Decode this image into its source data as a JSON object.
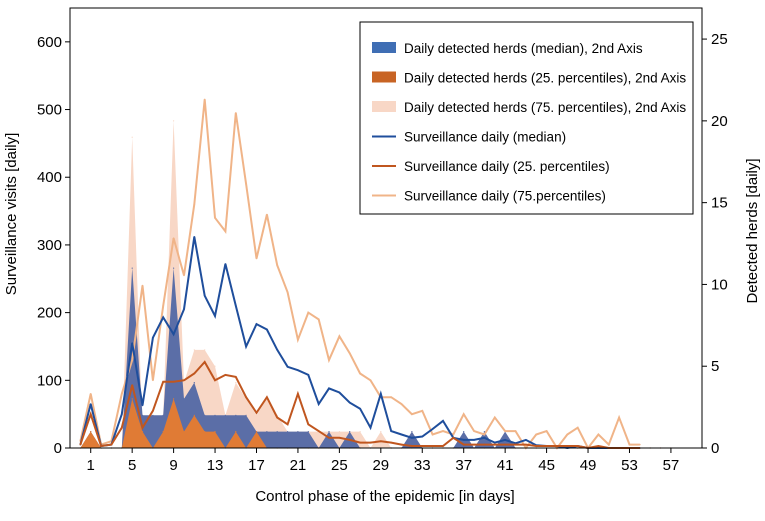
{
  "chart_data": {
    "type": "line",
    "xlabel": "Control phase of the epidemic [in days]",
    "ylabel_left": "Surveillance visits [daily]",
    "ylabel_right": "Detected herds [daily]",
    "x_ticks": [
      1,
      5,
      9,
      13,
      17,
      21,
      25,
      29,
      33,
      37,
      41,
      45,
      49,
      53,
      57
    ],
    "ylim_left": [
      0,
      650
    ],
    "yticks_left": [
      0,
      100,
      200,
      300,
      400,
      500,
      600
    ],
    "ylim_right": [
      0,
      26.9
    ],
    "yticks_right": [
      0,
      5,
      10,
      15,
      20,
      25
    ],
    "xlim": [
      -1,
      60
    ],
    "legend_position": "top-right",
    "colors": {
      "median": "#1f4e9c",
      "p25": "#c0561f",
      "p75": "#f0b488",
      "fill_median": "#5b6ea7",
      "fill_p25": "#e07b35",
      "fill_p75": "#f8d7c6"
    },
    "legend": [
      {
        "label": "Daily detected herds (median), 2nd Axis",
        "kind": "area",
        "series": "median"
      },
      {
        "label": "Daily detected herds (25. percentiles), 2nd Axis",
        "kind": "area",
        "series": "p25"
      },
      {
        "label": "Daily detected herds (75. percentiles), 2nd Axis",
        "kind": "area",
        "series": "p75"
      },
      {
        "label": "Surveillance daily (median)",
        "kind": "line",
        "series": "median"
      },
      {
        "label": "Surveillance daily (25. percentiles)",
        "kind": "line",
        "series": "p25"
      },
      {
        "label": "Surveillance daily (75.percentiles)",
        "kind": "line",
        "series": "p75"
      }
    ],
    "series": [
      {
        "name": "Daily detected herds (75. percentiles), 2nd Axis",
        "axis": "right",
        "kind": "area",
        "key": "p75",
        "x": [
          0,
          1,
          2,
          3,
          4,
          5,
          6,
          7,
          8,
          9,
          10,
          11,
          12,
          13,
          14,
          15,
          16,
          17,
          18,
          19,
          20,
          21,
          22,
          23,
          24,
          25,
          26,
          27,
          28,
          29,
          30,
          31,
          32,
          33,
          34,
          35,
          36,
          37,
          38,
          39,
          40,
          41,
          42,
          43,
          44,
          45,
          46,
          47,
          48,
          49,
          50,
          51,
          52,
          53,
          54,
          55,
          56,
          57
        ],
        "values": [
          0,
          1,
          0,
          0,
          0,
          19,
          1,
          0,
          2,
          20,
          4,
          6,
          6,
          5,
          2,
          4,
          3,
          2,
          3,
          2,
          1,
          1,
          1,
          1,
          1,
          1,
          1,
          1,
          0,
          1,
          0,
          0,
          1,
          0,
          0,
          0,
          0,
          0,
          0,
          0,
          0,
          0,
          0,
          0,
          0,
          0,
          0,
          0,
          0,
          0,
          0,
          0,
          0,
          0,
          0,
          0,
          0,
          0
        ]
      },
      {
        "name": "Daily detected herds (median), 2nd Axis",
        "axis": "right",
        "kind": "area",
        "key": "median",
        "x": [
          0,
          1,
          2,
          3,
          4,
          5,
          6,
          7,
          8,
          9,
          10,
          11,
          12,
          13,
          14,
          15,
          16,
          17,
          18,
          19,
          20,
          21,
          22,
          23,
          24,
          25,
          26,
          27,
          28,
          29,
          30,
          31,
          32,
          33,
          34,
          35,
          36,
          37,
          38,
          39,
          40,
          41,
          42,
          43,
          44,
          45,
          46,
          47,
          48,
          49,
          50,
          51,
          52,
          53,
          54,
          55,
          56,
          57
        ],
        "values": [
          0,
          1,
          0,
          0,
          0,
          11,
          2,
          2,
          2,
          11,
          3,
          4,
          2,
          2,
          2,
          2,
          2,
          1,
          1,
          1,
          1,
          1,
          1,
          0,
          1,
          0,
          1,
          0,
          0,
          0,
          0,
          0,
          1,
          0,
          0,
          0,
          0,
          1,
          0,
          1,
          0,
          1,
          0,
          0,
          0,
          0,
          0,
          0,
          0,
          0,
          0,
          0,
          0,
          0,
          0,
          0,
          0,
          0
        ]
      },
      {
        "name": "Daily detected herds (25. percentiles), 2nd Axis",
        "axis": "right",
        "kind": "area",
        "key": "p25",
        "x": [
          0,
          1,
          2,
          3,
          4,
          5,
          6,
          7,
          8,
          9,
          10,
          11,
          12,
          13,
          14,
          15,
          16,
          17,
          18,
          19,
          20,
          21,
          22,
          23,
          24,
          25,
          26,
          27,
          28,
          29,
          30,
          31,
          32,
          33,
          34,
          35,
          36,
          37,
          38,
          39,
          40,
          41,
          42,
          43,
          44,
          45,
          46,
          47,
          48,
          49,
          50,
          51,
          52,
          53,
          54,
          55,
          56,
          57
        ],
        "values": [
          0,
          1,
          0,
          0,
          0,
          3,
          1,
          0,
          1,
          3,
          1,
          2,
          1,
          1,
          0,
          1,
          0,
          1,
          0,
          0,
          0,
          0,
          0,
          0,
          0,
          0,
          0,
          0,
          0,
          0,
          0,
          0,
          0,
          0,
          0,
          0,
          0,
          0,
          0,
          0,
          0,
          0,
          0,
          0,
          0,
          0,
          0,
          0,
          0,
          0,
          0,
          0,
          0,
          0,
          0,
          0,
          0,
          0
        ]
      },
      {
        "name": "Surveillance daily (75.percentiles)",
        "axis": "left",
        "kind": "line",
        "key": "p75",
        "x": [
          0,
          1,
          2,
          3,
          4,
          5,
          6,
          7,
          8,
          9,
          10,
          11,
          12,
          13,
          14,
          15,
          16,
          17,
          18,
          19,
          20,
          21,
          22,
          23,
          24,
          25,
          26,
          27,
          28,
          29,
          30,
          31,
          32,
          33,
          34,
          35,
          36,
          37,
          38,
          39,
          40,
          41,
          42,
          43,
          44,
          45,
          46,
          47,
          48,
          49,
          50,
          51,
          52,
          53,
          54
        ],
        "values": [
          10,
          80,
          5,
          10,
          80,
          130,
          240,
          100,
          210,
          310,
          255,
          360,
          515,
          340,
          320,
          495,
          390,
          280,
          345,
          270,
          230,
          160,
          200,
          190,
          130,
          165,
          140,
          110,
          100,
          75,
          75,
          65,
          50,
          55,
          20,
          25,
          20,
          50,
          25,
          20,
          45,
          25,
          25,
          0,
          20,
          25,
          0,
          20,
          30,
          0,
          20,
          5,
          45,
          5,
          5
        ]
      },
      {
        "name": "Surveillance daily (median)",
        "axis": "left",
        "kind": "line",
        "key": "median",
        "x": [
          0,
          1,
          2,
          3,
          4,
          5,
          6,
          7,
          8,
          9,
          10,
          11,
          12,
          13,
          14,
          15,
          16,
          17,
          18,
          19,
          20,
          21,
          22,
          23,
          24,
          25,
          26,
          27,
          28,
          29,
          30,
          31,
          32,
          33,
          34,
          35,
          36,
          37,
          38,
          39,
          40,
          41,
          42,
          43,
          44,
          45,
          46,
          47,
          48,
          49,
          50,
          51,
          52,
          53,
          54
        ],
        "values": [
          5,
          65,
          3,
          5,
          50,
          155,
          63,
          163,
          193,
          168,
          205,
          312,
          225,
          195,
          272,
          210,
          150,
          183,
          175,
          145,
          120,
          115,
          108,
          65,
          88,
          82,
          67,
          58,
          30,
          80,
          25,
          20,
          15,
          17,
          28,
          40,
          15,
          12,
          12,
          15,
          8,
          12,
          7,
          12,
          4,
          3,
          3,
          0,
          3,
          0,
          0,
          0,
          0,
          0,
          0
        ]
      },
      {
        "name": "Surveillance daily (25. percentiles)",
        "axis": "left",
        "kind": "line",
        "key": "p25",
        "x": [
          0,
          1,
          2,
          3,
          4,
          5,
          6,
          7,
          8,
          9,
          10,
          11,
          12,
          13,
          14,
          15,
          16,
          17,
          18,
          19,
          20,
          21,
          22,
          23,
          24,
          25,
          26,
          27,
          28,
          29,
          30,
          31,
          32,
          33,
          34,
          35,
          36,
          37,
          38,
          39,
          40,
          41,
          42,
          43,
          44,
          45,
          46,
          47,
          48,
          49,
          50,
          51,
          52,
          53,
          54
        ],
        "values": [
          5,
          50,
          3,
          5,
          30,
          93,
          30,
          55,
          98,
          98,
          100,
          110,
          127,
          100,
          108,
          105,
          75,
          52,
          75,
          45,
          35,
          80,
          35,
          25,
          15,
          15,
          12,
          8,
          8,
          10,
          8,
          5,
          3,
          3,
          3,
          3,
          15,
          5,
          5,
          5,
          5,
          5,
          5,
          5,
          3,
          3,
          3,
          3,
          3,
          0,
          3,
          0,
          0,
          0,
          0
        ]
      }
    ]
  }
}
